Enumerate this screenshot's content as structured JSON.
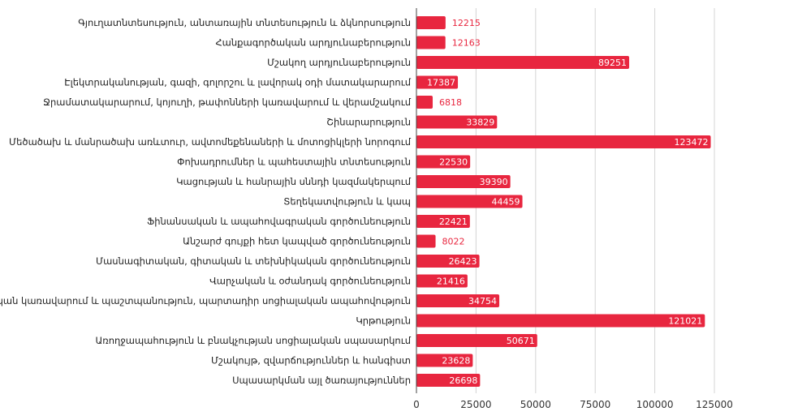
{
  "chart_data": {
    "type": "bar",
    "orientation": "horizontal",
    "title": "",
    "xlabel": "",
    "ylabel": "",
    "xlim": [
      0,
      130000
    ],
    "x_ticks": [
      0,
      25000,
      50000,
      75000,
      100000,
      125000
    ],
    "x_tick_labels": [
      "0",
      "25000",
      "50000",
      "75000",
      "100000",
      "125000"
    ],
    "grid": true,
    "legend": "none",
    "bar_color": "#e8263f",
    "categories": [
      "Գյուղատնտեսություն, անտառային տնտեսություն և ձկնորսություն",
      "Հանքագործական արդյունաբերություն",
      "Մշակող արդյունաբերություն",
      "Էլեկտրականության, գազի, գոլորշու և լավորակ օդի մատակարարում",
      "Ջրամատակարարում, կոյուղի, թափոնների կառավարում և վերամշակում",
      "Շինարարություն",
      "Մեծածախ և մանրածախ առևտուր, ավտոմեքենաների և մոտոցիկլերի նորոգում",
      "Փոխադրումներ և պահեստային տնտեսություն",
      "Կացության և հանրային սննդի կազմակերպում",
      "Տեղեկատվություն և կապ",
      "Ֆինանսական և ապահովագրական գործունեություն",
      "Անշարժ գույքի հետ կապված գործունեություն",
      "Մասնագիտական, գիտական և տեխնիկական գործունեություն",
      "Վարչական և օժանդակ գործունեություն",
      "Պետական կառավարում և պաշտպանություն, պարտադիր սոցիալական ապահովություն",
      "Կրթություն",
      "Առողջապահություն և բնակչության սոցիալական սպասարկում",
      "Մշակույթ, զվարճություններ և հանգիստ",
      "Սպասարկման այլ ծառայություններ"
    ],
    "values": [
      12215,
      12163,
      89251,
      17387,
      6818,
      33829,
      123472,
      22530,
      39390,
      44459,
      22421,
      8022,
      26423,
      21416,
      34754,
      121021,
      50671,
      23628,
      26698
    ],
    "value_labels": [
      "12215",
      "12163",
      "89251",
      "17387",
      "6818",
      "33829",
      "123472",
      "22530",
      "39390",
      "44459",
      "22421",
      "8022",
      "26423",
      "21416",
      "34754",
      "121021",
      "50671",
      "23628",
      "26698"
    ]
  }
}
